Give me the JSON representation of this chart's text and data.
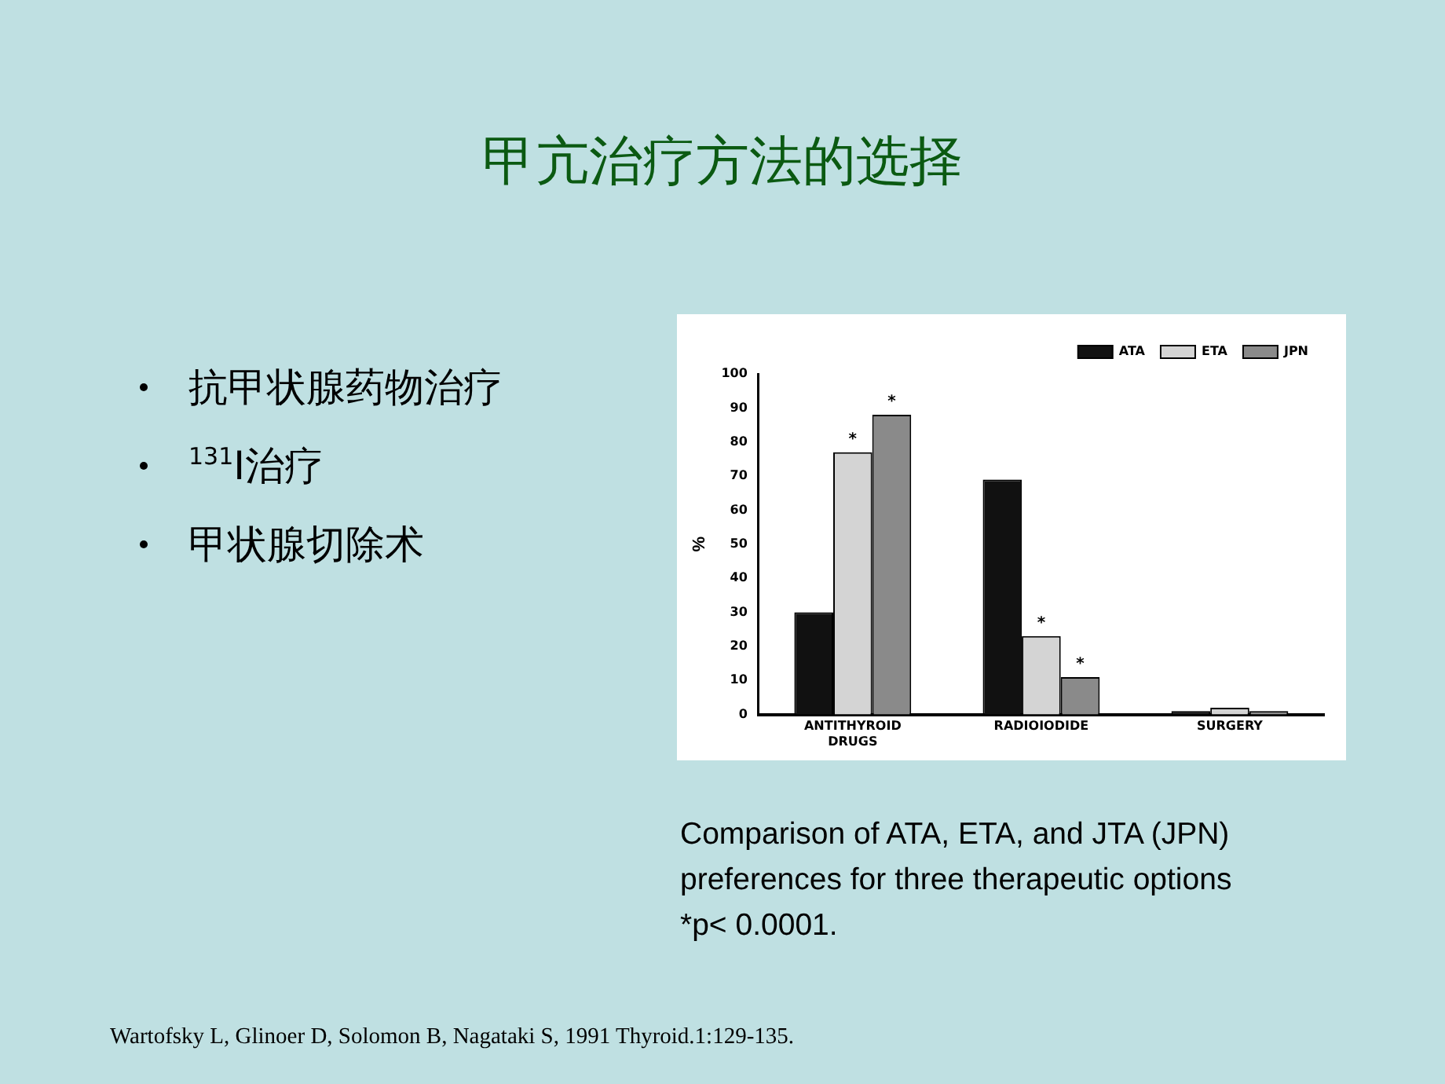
{
  "chart_data": {
    "type": "bar",
    "title": "甲亢治疗方法的选择",
    "categories": [
      "ANTITHYROID DRUGS",
      "RADIOIODIDE",
      "SURGERY"
    ],
    "series": [
      {
        "name": "ATA",
        "color": "#111111",
        "values": [
          30,
          69,
          1
        ]
      },
      {
        "name": "ETA",
        "color": "#d4d4d4",
        "values": [
          77,
          23,
          2
        ],
        "value_labels": [
          "*",
          "*",
          null
        ]
      },
      {
        "name": "JPN",
        "color": "#8a8a8a",
        "values": [
          88,
          11,
          1
        ],
        "value_labels": [
          "*",
          "*",
          null
        ]
      }
    ],
    "ylabel": "%",
    "ylim": [
      0,
      100
    ],
    "yticks": [
      0,
      10,
      20,
      30,
      40,
      50,
      60,
      70,
      80,
      90,
      100
    ],
    "grid": false,
    "legend": "top right",
    "annotations": [
      "抗甲状腺药物治疗",
      "$^{131}$I治疗",
      "甲状腺切除术",
      "Comparison of ATA, ETA, and JTA (JPN) preferences for three therapeutic options\n*p< 0.0001.",
      "Wartofsky L, Glinoer D, Solomon B, Nagataki S, 1991 Thyroid.1:129-135."
    ]
  }
}
